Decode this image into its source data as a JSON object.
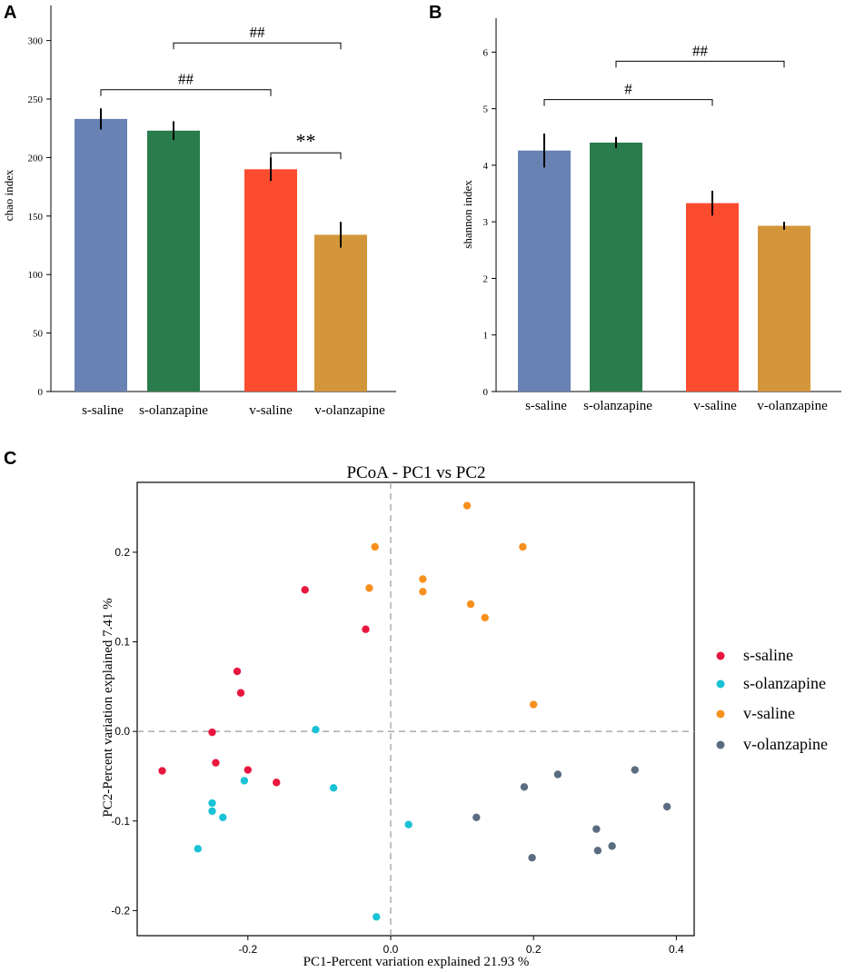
{
  "figure": {
    "panel_labels": [
      "A",
      "B",
      "C"
    ]
  },
  "chart_data": [
    {
      "panel": "A",
      "type": "bar",
      "ylabel": "chao index",
      "xlabel": "",
      "ylim": [
        0,
        330
      ],
      "yticks": [
        0,
        50,
        100,
        150,
        200,
        250,
        300
      ],
      "categories": [
        "s-saline",
        "s-olanzapine",
        "v-saline",
        "v-olanzapine"
      ],
      "values": [
        233,
        223,
        190,
        134
      ],
      "errors": [
        9,
        8,
        10,
        11
      ],
      "colors": [
        "#6882b4",
        "#2b7c4c",
        "#fc4c2f",
        "#d4963a"
      ],
      "significance": [
        {
          "from": 0,
          "to": 2,
          "label": "##",
          "y": 258
        },
        {
          "from": 1,
          "to": 3,
          "label": "##",
          "y": 298
        },
        {
          "from": 2,
          "to": 3,
          "label": "**",
          "y": 204
        }
      ]
    },
    {
      "panel": "B",
      "type": "bar",
      "ylabel": "shannon index",
      "xlabel": "",
      "ylim": [
        0,
        6.6
      ],
      "yticks": [
        0,
        1,
        2,
        3,
        4,
        5,
        6
      ],
      "categories": [
        "s-saline",
        "s-olanzapine",
        "v-saline",
        "v-olanzapine"
      ],
      "values": [
        4.26,
        4.4,
        3.33,
        2.93
      ],
      "errors": [
        0.3,
        0.1,
        0.22,
        0.07
      ],
      "colors": [
        "#6882b4",
        "#2b7c4c",
        "#fc4c2f",
        "#d4963a"
      ],
      "significance": [
        {
          "from": 0,
          "to": 2,
          "label": "#",
          "y": 5.16
        },
        {
          "from": 1,
          "to": 3,
          "label": "##",
          "y": 5.84
        }
      ]
    },
    {
      "panel": "C",
      "type": "scatter",
      "title": "PCoA - PC1 vs PC2",
      "xlabel": "PC1-Percent variation explained 21.93 %",
      "ylabel": "PC2-Percent variation explained 7.41 %",
      "xlim": [
        -0.355,
        0.425
      ],
      "ylim": [
        -0.228,
        0.278
      ],
      "xticks": [
        -0.2,
        0.0,
        0.2,
        0.4
      ],
      "xtick_labels": [
        "-0.2",
        "0.0",
        "0.2",
        "0.4"
      ],
      "yticks": [
        -0.2,
        -0.1,
        0.0,
        0.1,
        0.2
      ],
      "ytick_labels": [
        "-0.2",
        "-0.1",
        "0.0",
        "0.1",
        "0.2"
      ],
      "reference_lines": {
        "x": 0,
        "y": 0
      },
      "legend_position": "right",
      "series": [
        {
          "name": "s-saline",
          "color": "#e8173f",
          "points": [
            [
              -0.12,
              0.158
            ],
            [
              -0.035,
              0.114
            ],
            [
              -0.215,
              0.067
            ],
            [
              -0.21,
              0.043
            ],
            [
              -0.25,
              -0.001
            ],
            [
              -0.245,
              -0.035
            ],
            [
              -0.2,
              -0.043
            ],
            [
              -0.16,
              -0.057
            ],
            [
              -0.32,
              -0.044
            ]
          ]
        },
        {
          "name": "s-olanzapine",
          "color": "#1ac2d6",
          "points": [
            [
              -0.105,
              0.002
            ],
            [
              -0.08,
              -0.063
            ],
            [
              -0.205,
              -0.055
            ],
            [
              -0.25,
              -0.08
            ],
            [
              -0.25,
              -0.089
            ],
            [
              -0.235,
              -0.096
            ],
            [
              -0.27,
              -0.131
            ],
            [
              0.025,
              -0.104
            ],
            [
              -0.02,
              -0.207
            ]
          ]
        },
        {
          "name": "v-saline",
          "color": "#f7901e",
          "points": [
            [
              -0.022,
              0.206
            ],
            [
              -0.03,
              0.16
            ],
            [
              0.045,
              0.17
            ],
            [
              0.045,
              0.156
            ],
            [
              0.107,
              0.252
            ],
            [
              0.112,
              0.142
            ],
            [
              0.132,
              0.127
            ],
            [
              0.185,
              0.206
            ],
            [
              0.2,
              0.03
            ]
          ]
        },
        {
          "name": "v-olanzapine",
          "color": "#5a6c80",
          "points": [
            [
              0.187,
              -0.062
            ],
            [
              0.234,
              -0.048
            ],
            [
              0.12,
              -0.096
            ],
            [
              0.198,
              -0.141
            ],
            [
              0.288,
              -0.109
            ],
            [
              0.29,
              -0.133
            ],
            [
              0.31,
              -0.128
            ],
            [
              0.342,
              -0.043
            ],
            [
              0.387,
              -0.084
            ]
          ]
        }
      ]
    }
  ]
}
